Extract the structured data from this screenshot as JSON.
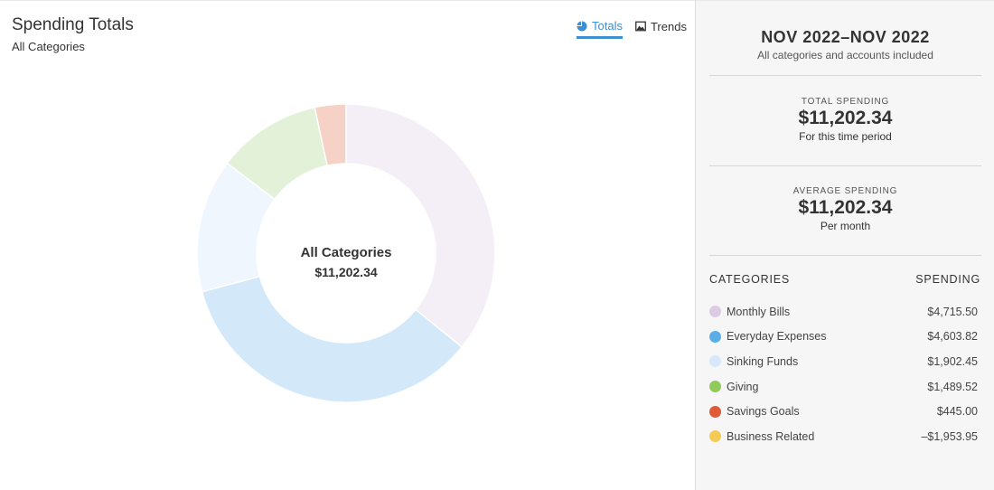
{
  "header": {
    "title": "Spending Totals",
    "subtitle": "All Categories"
  },
  "tabs": [
    {
      "label": "Totals",
      "icon": "pie-chart-icon",
      "active": true
    },
    {
      "label": "Trends",
      "icon": "image-icon",
      "active": false
    }
  ],
  "chart": {
    "center_title": "All Categories",
    "center_value": "$11,202.34"
  },
  "chart_data": {
    "type": "pie",
    "donut": true,
    "categories": [
      "Monthly Bills",
      "Everyday Expenses",
      "Sinking Funds",
      "Giving",
      "Savings Goals"
    ],
    "values": [
      4715.5,
      4603.82,
      1902.45,
      1489.52,
      445.0
    ],
    "colors": [
      "#f4eff7",
      "#d3e8f8",
      "#eff6fd",
      "#e2f1d8",
      "#f5d2c5"
    ]
  },
  "summary": {
    "range": "NOV 2022–NOV 2022",
    "range_sub": "All categories and accounts included",
    "total_label": "TOTAL SPENDING",
    "total_value": "$11,202.34",
    "total_sub": "For this time period",
    "average_label": "AVERAGE SPENDING",
    "average_value": "$11,202.34",
    "average_sub": "Per month"
  },
  "categories": {
    "col_category": "CATEGORIES",
    "col_spending": "SPENDING",
    "items": [
      {
        "name": "Monthly Bills",
        "amount": "$4,715.50",
        "color": "#dccbe4"
      },
      {
        "name": "Everyday Expenses",
        "amount": "$4,603.82",
        "color": "#5aaee8"
      },
      {
        "name": "Sinking Funds",
        "amount": "$1,902.45",
        "color": "#d6e8f9"
      },
      {
        "name": "Giving",
        "amount": "$1,489.52",
        "color": "#92c95b"
      },
      {
        "name": "Savings Goals",
        "amount": "$445.00",
        "color": "#e05a35"
      },
      {
        "name": "Business Related",
        "amount": "–$1,953.95",
        "color": "#f6cb55"
      }
    ]
  }
}
